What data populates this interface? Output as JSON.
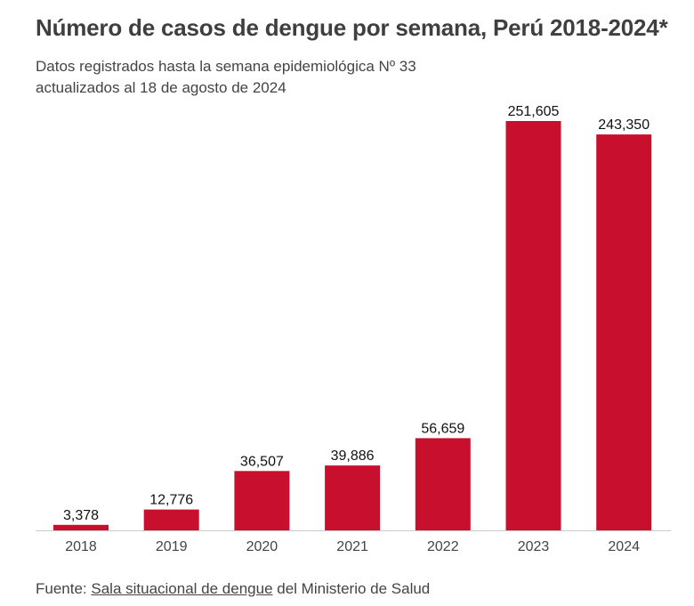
{
  "title": "Número de casos de dengue por semana, Perú 2018-2024*",
  "subtitle": {
    "line1": "Datos registrados hasta la semana epidemiológica Nº 33",
    "line2": "actualizados al 18 de agosto de 2024"
  },
  "footer": {
    "prefix": "Fuente: ",
    "link_text": "Sala situacional de dengue",
    "suffix": " del Ministerio de Salud"
  },
  "colors": {
    "bar": "#c8102e",
    "axis": "#cccccc",
    "label": "#111111",
    "tick": "#444444"
  },
  "chart_data": {
    "type": "bar",
    "categories": [
      "2018",
      "2019",
      "2020",
      "2021",
      "2022",
      "2023",
      "2024"
    ],
    "values": [
      3378,
      12776,
      36507,
      39886,
      56659,
      251605,
      243350
    ],
    "data_labels": [
      "3,378",
      "12,776",
      "36,507",
      "39,886",
      "56,659",
      "251,605",
      "243,350"
    ],
    "xlabel": "",
    "ylabel": "",
    "grid": false,
    "legend": "none"
  }
}
